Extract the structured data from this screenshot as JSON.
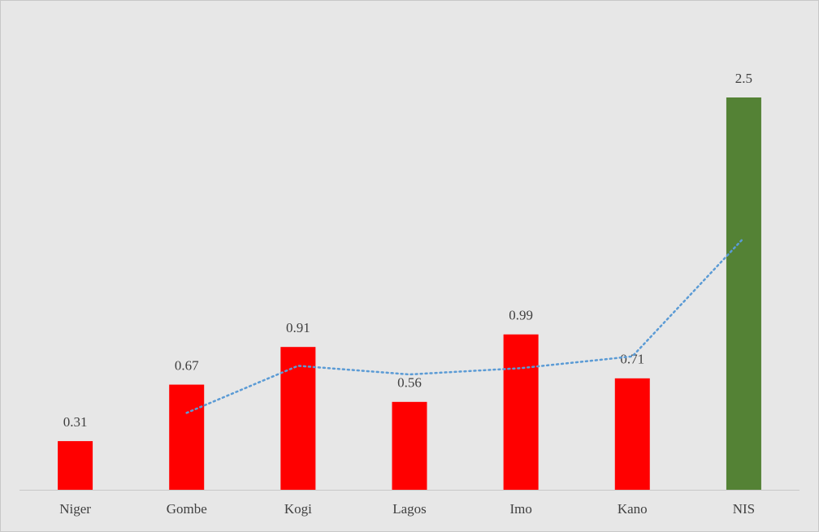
{
  "chart_data": {
    "type": "bar",
    "categories": [
      "Niger",
      "Gombe",
      "Kogi",
      "Lagos",
      "Imo",
      "Kano",
      "NIS"
    ],
    "values": [
      0.31,
      0.67,
      0.91,
      0.56,
      0.99,
      0.71,
      2.5
    ],
    "colors": [
      "#ff0000",
      "#ff0000",
      "#ff0000",
      "#ff0000",
      "#ff0000",
      "#ff0000",
      "#548235"
    ],
    "trendline": {
      "color": "#5b9bd5",
      "values": [
        null,
        0.49,
        0.79,
        0.735,
        0.775,
        0.85,
        1.605
      ]
    },
    "ylim": [
      0,
      3
    ]
  }
}
